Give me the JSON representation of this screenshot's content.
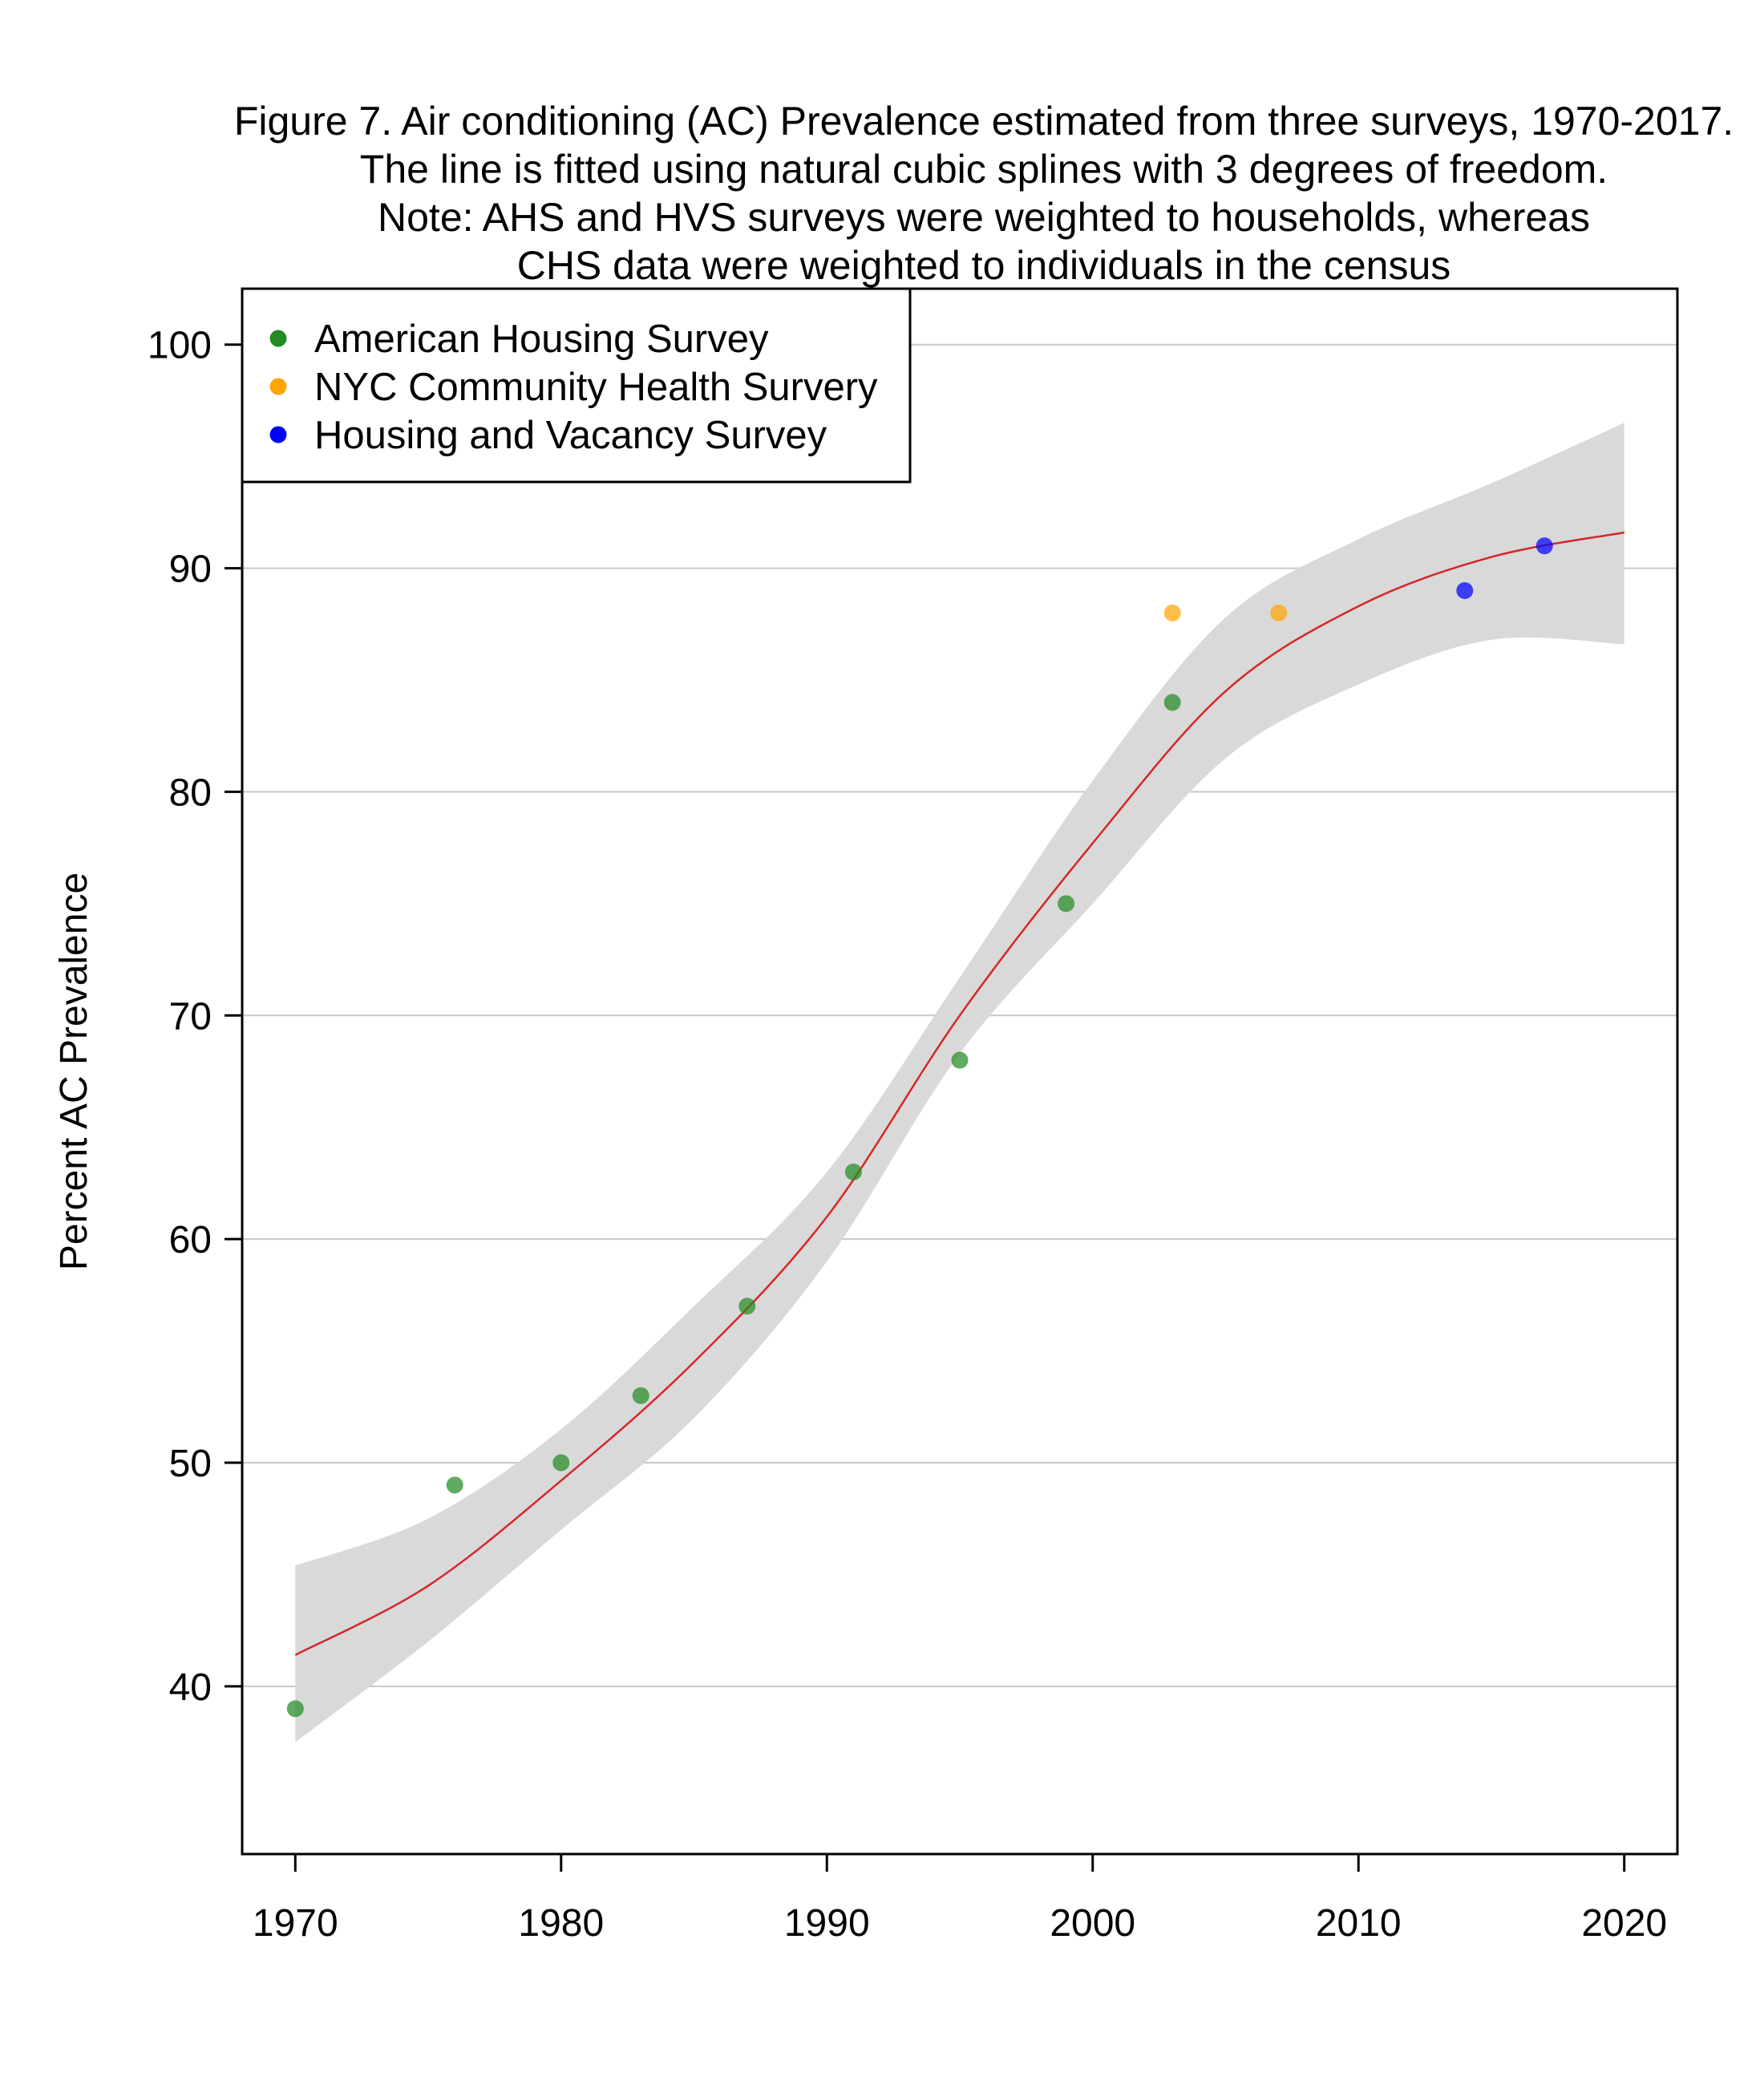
{
  "chart_data": {
    "type": "scatter",
    "title_lines": [
      "Figure 7. Air conditioning (AC) Prevalence estimated from three surveys, 1970-2017.",
      "The line is fitted using natural cubic splines with 3 degrees of freedom.",
      "Note: AHS and HVS surveys were weighted to households, whereas",
      "CHS data were weighted to individuals in the census"
    ],
    "xlabel": "",
    "ylabel": "Percent AC Prevalence",
    "xlim": [
      1968,
      2022
    ],
    "ylim": [
      32.5,
      102.5
    ],
    "x_ticks": [
      1970,
      1980,
      1990,
      2000,
      2010,
      2020
    ],
    "y_ticks": [
      40,
      50,
      60,
      70,
      80,
      90,
      100
    ],
    "grid": {
      "horizontal": true,
      "vertical": false,
      "color": "#c8c8c8"
    },
    "legend_position": "top-left",
    "series": [
      {
        "name": "American Housing Survey",
        "color": "#228B22",
        "x": [
          1970,
          1976,
          1980,
          1983,
          1987,
          1991,
          1995,
          1999,
          2003
        ],
        "y": [
          39,
          49,
          50,
          53,
          57,
          63,
          68,
          75,
          84
        ]
      },
      {
        "name": "NYC Community Health Survery",
        "color": "#FFA500",
        "x": [
          2003,
          2007
        ],
        "y": [
          88,
          88
        ]
      },
      {
        "name": "Housing and Vacancy Survey",
        "color": "#0000FF",
        "x": [
          2014,
          2017
        ],
        "y": [
          89,
          91
        ]
      }
    ],
    "fit": {
      "color": "#d62728",
      "band_color": "#d9d9d9",
      "x": [
        1970,
        1975,
        1980,
        1985,
        1990,
        1995,
        2000,
        2005,
        2010,
        2015,
        2020
      ],
      "y": [
        41.4,
        44.5,
        49.2,
        54.5,
        61.0,
        70.0,
        77.7,
        84.5,
        88.3,
        90.5,
        91.6
      ],
      "lower": [
        37.5,
        42.0,
        47.0,
        52.0,
        59.0,
        68.3,
        75.0,
        81.5,
        84.8,
        86.8,
        86.6
      ],
      "upper": [
        45.4,
        47.5,
        51.5,
        57.0,
        63.0,
        71.7,
        80.5,
        87.8,
        91.3,
        93.8,
        96.5
      ]
    }
  }
}
